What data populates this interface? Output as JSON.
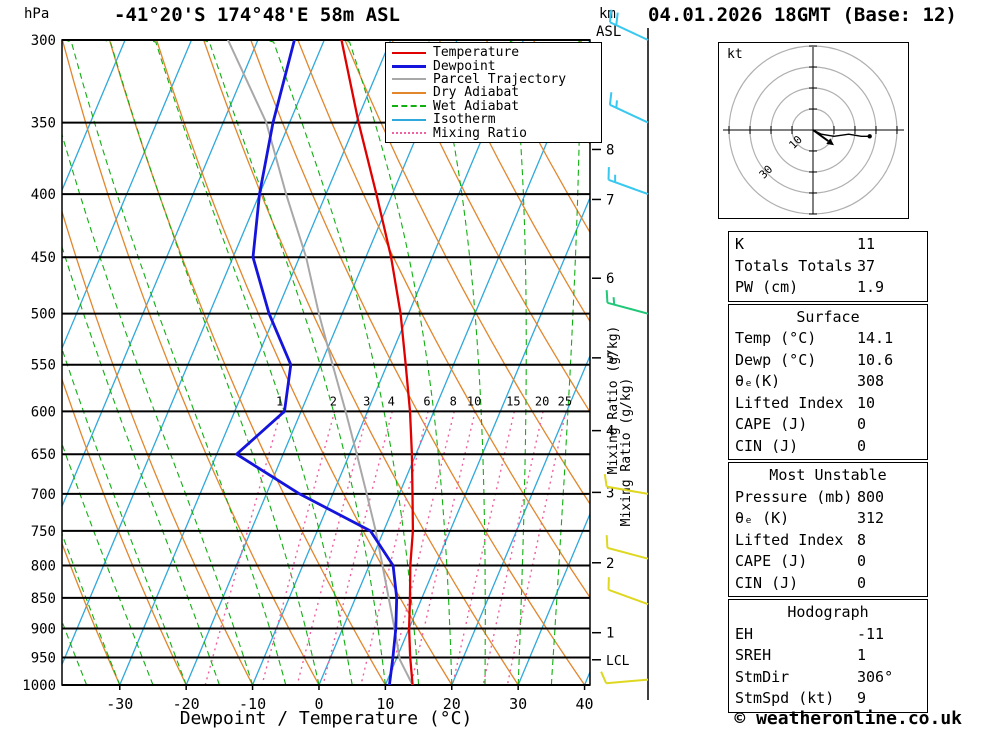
{
  "footer": {
    "copyright": "© weatheronline.co.uk"
  },
  "legend": {
    "items": [
      {
        "label": "Temperature",
        "color": "#e00000",
        "style": "solid",
        "weight": 2
      },
      {
        "label": "Dewpoint",
        "color": "#1414dc",
        "style": "solid",
        "weight": 3
      },
      {
        "label": "Parcel Trajectory",
        "color": "#a8a8a8",
        "style": "solid",
        "weight": 2
      },
      {
        "label": "Dry Adiabat",
        "color": "#e2862c",
        "style": "solid",
        "weight": 2
      },
      {
        "label": "Wet Adiabat",
        "color": "#10b010",
        "style": "dashed",
        "weight": 2
      },
      {
        "label": "Isotherm",
        "color": "#2fa8dc",
        "style": "solid",
        "weight": 2
      },
      {
        "label": "Mixing Ratio",
        "color": "#f060a0",
        "style": "dotted",
        "weight": 2
      }
    ]
  },
  "chart_data": {
    "type": "skewt_log_p",
    "title": "-41°20'S 174°48'E 58m ASL",
    "datetime": "04.01.2026 18GMT (Base: 12)",
    "x_axis": {
      "label": "Dewpoint / Temperature (°C)",
      "min": -40,
      "max": 40,
      "ticks": [
        -30,
        -20,
        -10,
        0,
        10,
        20,
        30,
        40
      ]
    },
    "y_axis": {
      "label": "hPa",
      "scale": "log",
      "ticks": [
        300,
        350,
        400,
        450,
        500,
        550,
        600,
        650,
        700,
        750,
        800,
        850,
        900,
        950,
        1000
      ]
    },
    "km_axis": {
      "unit_top": "km",
      "unit_bottom": "ASL",
      "marks": [
        {
          "km": 1,
          "p": 907
        },
        {
          "km": 2,
          "p": 796
        },
        {
          "km": 3,
          "p": 698
        },
        {
          "km": 4,
          "p": 622
        },
        {
          "km": 5,
          "p": 543
        },
        {
          "km": 6,
          "p": 468
        },
        {
          "km": 7,
          "p": 404
        },
        {
          "km": 8,
          "p": 368
        }
      ],
      "lcl": {
        "label": "LCL",
        "p": 954
      }
    },
    "series": {
      "temperature": {
        "label": "Temperature",
        "color": "#e00000",
        "points": [
          [
            1000,
            14.1
          ],
          [
            950,
            12.0
          ],
          [
            900,
            10.0
          ],
          [
            850,
            8.2
          ],
          [
            800,
            6.2
          ],
          [
            750,
            4.4
          ],
          [
            700,
            2.0
          ],
          [
            650,
            -0.6
          ],
          [
            600,
            -3.6
          ],
          [
            550,
            -7.2
          ],
          [
            500,
            -11.2
          ],
          [
            450,
            -16.2
          ],
          [
            400,
            -22.4
          ],
          [
            350,
            -29.6
          ],
          [
            300,
            -37.4
          ]
        ]
      },
      "dewpoint": {
        "label": "Dewpoint",
        "color": "#1414dc",
        "points": [
          [
            1000,
            10.6
          ],
          [
            950,
            9.4
          ],
          [
            900,
            8.0
          ],
          [
            850,
            6.2
          ],
          [
            800,
            3.6
          ],
          [
            750,
            -2.0
          ],
          [
            700,
            -15.0
          ],
          [
            650,
            -27.0
          ],
          [
            600,
            -22.5
          ],
          [
            550,
            -24.5
          ],
          [
            500,
            -31.0
          ],
          [
            450,
            -37.0
          ],
          [
            400,
            -40.0
          ],
          [
            350,
            -42.5
          ],
          [
            300,
            -44.5
          ]
        ]
      },
      "parcel": {
        "label": "Parcel Trajectory",
        "color": "#a8a8a8",
        "points": [
          [
            1000,
            14.1
          ],
          [
            954,
            10.6
          ],
          [
            900,
            7.8
          ],
          [
            850,
            5.0
          ],
          [
            800,
            2.0
          ],
          [
            750,
            -1.2
          ],
          [
            700,
            -4.9
          ],
          [
            650,
            -8.9
          ],
          [
            600,
            -13.3
          ],
          [
            550,
            -18.2
          ],
          [
            500,
            -23.5
          ],
          [
            450,
            -29.0
          ],
          [
            400,
            -36.0
          ],
          [
            350,
            -43.5
          ],
          [
            300,
            -54.5
          ]
        ]
      }
    },
    "background_lines": {
      "isotherm": {
        "label": "Isotherm",
        "color": "#2fa8dc",
        "step": 10,
        "min": -100,
        "max": 40
      },
      "dry_adiabat": {
        "label": "Dry Adiabat",
        "color": "#e2862c",
        "step": 10,
        "theta_min": -40,
        "theta_max": 120
      },
      "wet_adiabat": {
        "label": "Wet Adiabat",
        "color": "#10b010",
        "step": 5,
        "t0_min": -40,
        "t0_max": 35
      },
      "mixing_ratio": {
        "label": "Mixing Ratio",
        "color": "#f060a0",
        "values": [
          1,
          2,
          3,
          4,
          6,
          8,
          10,
          15,
          20,
          25
        ],
        "axis_label": "Mixing Ratio (g/kg)"
      }
    },
    "wind_barbs": [
      {
        "p": 300,
        "dir_deg": 295,
        "speed_kt": 20,
        "color": "#38c8f0"
      },
      {
        "p": 350,
        "dir_deg": 295,
        "speed_kt": 15,
        "color": "#38c8f0"
      },
      {
        "p": 400,
        "dir_deg": 290,
        "speed_kt": 15,
        "color": "#38c8f0"
      },
      {
        "p": 500,
        "dir_deg": 285,
        "speed_kt": 15,
        "color": "#20c878"
      },
      {
        "p": 700,
        "dir_deg": 280,
        "speed_kt": 10,
        "color": "#ded820"
      },
      {
        "p": 790,
        "dir_deg": 285,
        "speed_kt": 10,
        "color": "#ded820"
      },
      {
        "p": 860,
        "dir_deg": 290,
        "speed_kt": 10,
        "color": "#ded820"
      },
      {
        "p": 990,
        "dir_deg": 265,
        "speed_kt": 10,
        "color": "#ded820"
      }
    ]
  },
  "hodograph": {
    "unit": "kt",
    "rings_kt": [
      10,
      20,
      30,
      40
    ],
    "ring_labels": [
      {
        "value": "10",
        "r_kt": 10
      },
      {
        "value": "30",
        "r_kt": 30
      }
    ],
    "trace_kt": [
      [
        0,
        0
      ],
      [
        4,
        -2
      ],
      [
        10,
        -3
      ],
      [
        17,
        -2
      ],
      [
        23,
        -3
      ],
      [
        27,
        -3
      ]
    ],
    "storm": {
      "dir_deg": 306,
      "speed_kt": 9
    }
  },
  "indices": {
    "sections": [
      {
        "header": null,
        "rows": [
          [
            "K",
            "11"
          ],
          [
            "Totals Totals",
            "37"
          ],
          [
            "PW (cm)",
            "1.9"
          ]
        ]
      },
      {
        "header": "Surface",
        "rows": [
          [
            "Temp (°C)",
            "14.1"
          ],
          [
            "Dewp (°C)",
            "10.6"
          ],
          [
            "θₑ(K)",
            "308"
          ],
          [
            "Lifted Index",
            "10"
          ],
          [
            "CAPE (J)",
            "0"
          ],
          [
            "CIN (J)",
            "0"
          ]
        ]
      },
      {
        "header": "Most Unstable",
        "rows": [
          [
            "Pressure (mb)",
            "800"
          ],
          [
            "θₑ (K)",
            "312"
          ],
          [
            "Lifted Index",
            "8"
          ],
          [
            "CAPE (J)",
            "0"
          ],
          [
            "CIN (J)",
            "0"
          ]
        ]
      },
      {
        "header": "Hodograph",
        "rows": [
          [
            "EH",
            "-11"
          ],
          [
            "SREH",
            "1"
          ],
          [
            "StmDir",
            "306°"
          ],
          [
            "StmSpd (kt)",
            "9"
          ]
        ]
      }
    ]
  }
}
